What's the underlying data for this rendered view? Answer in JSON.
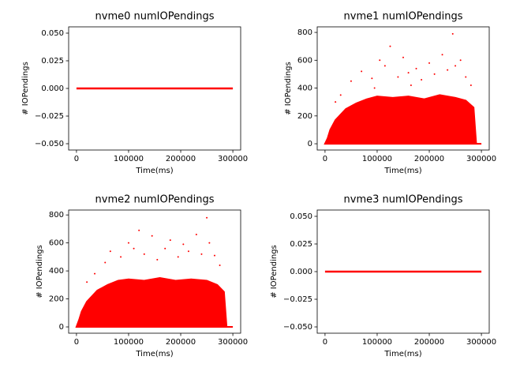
{
  "chart_data": [
    {
      "type": "line",
      "title": "nvme0 numIOPendings",
      "x_label": "Time(ms)",
      "y_label": "# IOPendings",
      "xlim": [
        -15000,
        315000
      ],
      "xticks": [
        0,
        100000,
        200000,
        300000
      ],
      "ylim": [
        -0.0557,
        0.0557
      ],
      "yticks": [
        {
          "value": -0.05,
          "label": "−0.050"
        },
        {
          "value": -0.025,
          "label": "−0.025"
        },
        {
          "value": 0,
          "label": "0.000"
        },
        {
          "value": 0.025,
          "label": "0.025"
        },
        {
          "value": 0.05,
          "label": "0.050"
        }
      ],
      "series": [
        {
          "type": "line",
          "color": "#ff0000",
          "x": [
            0,
            300000
          ],
          "values": [
            0,
            0
          ]
        }
      ]
    },
    {
      "type": "scatter",
      "title": "nvme1 numIOPendings",
      "x_label": "Time(ms)",
      "y_label": "# IOPendings",
      "xlim": [
        -15000,
        315000
      ],
      "xticks": [
        0,
        100000,
        200000,
        300000
      ],
      "ylim": [
        -45,
        840
      ],
      "yticks": [
        0,
        200,
        400,
        600,
        800
      ],
      "series": [
        {
          "type": "area",
          "color": "#ff0000",
          "x": [
            0,
            5000,
            10000,
            20000,
            40000,
            60000,
            80000,
            100000,
            130000,
            160000,
            190000,
            220000,
            250000,
            270000,
            285000,
            290000,
            300000
          ],
          "values": [
            0,
            40,
            100,
            170,
            250,
            290,
            320,
            340,
            330,
            340,
            320,
            350,
            330,
            310,
            260,
            0,
            0
          ]
        },
        {
          "type": "scatter",
          "color": "#ff0000",
          "x": [
            20000,
            30000,
            50000,
            70000,
            90000,
            95000,
            105000,
            115000,
            125000,
            140000,
            150000,
            160000,
            165000,
            175000,
            185000,
            200000,
            210000,
            225000,
            235000,
            245000,
            250000,
            260000,
            270000,
            280000
          ],
          "values": [
            300,
            350,
            450,
            520,
            470,
            400,
            600,
            560,
            700,
            480,
            620,
            510,
            420,
            540,
            460,
            580,
            500,
            640,
            530,
            790,
            560,
            600,
            480,
            420
          ]
        }
      ]
    },
    {
      "type": "scatter",
      "title": "nvme2 numIOPendings",
      "x_label": "Time(ms)",
      "y_label": "# IOPendings",
      "xlim": [
        -15000,
        315000
      ],
      "xticks": [
        0,
        100000,
        200000,
        300000
      ],
      "ylim": [
        -45,
        835
      ],
      "yticks": [
        0,
        200,
        400,
        600,
        800
      ],
      "series": [
        {
          "type": "area",
          "color": "#ff0000",
          "x": [
            0,
            5000,
            10000,
            20000,
            40000,
            60000,
            80000,
            100000,
            130000,
            160000,
            190000,
            220000,
            250000,
            270000,
            283000,
            288000,
            300000
          ],
          "values": [
            0,
            50,
            110,
            180,
            260,
            300,
            330,
            340,
            330,
            350,
            330,
            340,
            330,
            300,
            250,
            0,
            0
          ]
        },
        {
          "type": "scatter",
          "color": "#ff0000",
          "x": [
            20000,
            35000,
            55000,
            65000,
            85000,
            100000,
            110000,
            120000,
            130000,
            145000,
            155000,
            170000,
            180000,
            195000,
            205000,
            215000,
            230000,
            240000,
            250000,
            255000,
            265000,
            275000
          ],
          "values": [
            320,
            380,
            460,
            540,
            500,
            600,
            560,
            690,
            520,
            650,
            480,
            560,
            620,
            500,
            590,
            540,
            660,
            520,
            780,
            600,
            510,
            440
          ]
        }
      ]
    },
    {
      "type": "line",
      "title": "nvme3 numIOPendings",
      "x_label": "Time(ms)",
      "y_label": "# IOPendings",
      "xlim": [
        -15000,
        315000
      ],
      "xticks": [
        0,
        100000,
        200000,
        300000
      ],
      "ylim": [
        -0.0557,
        0.0557
      ],
      "yticks": [
        {
          "value": -0.05,
          "label": "−0.050"
        },
        {
          "value": -0.025,
          "label": "−0.025"
        },
        {
          "value": 0,
          "label": "0.000"
        },
        {
          "value": 0.025,
          "label": "0.025"
        },
        {
          "value": 0.05,
          "label": "0.050"
        }
      ],
      "series": [
        {
          "type": "line",
          "color": "#ff0000",
          "x": [
            0,
            300000
          ],
          "values": [
            0,
            0
          ]
        }
      ]
    }
  ]
}
